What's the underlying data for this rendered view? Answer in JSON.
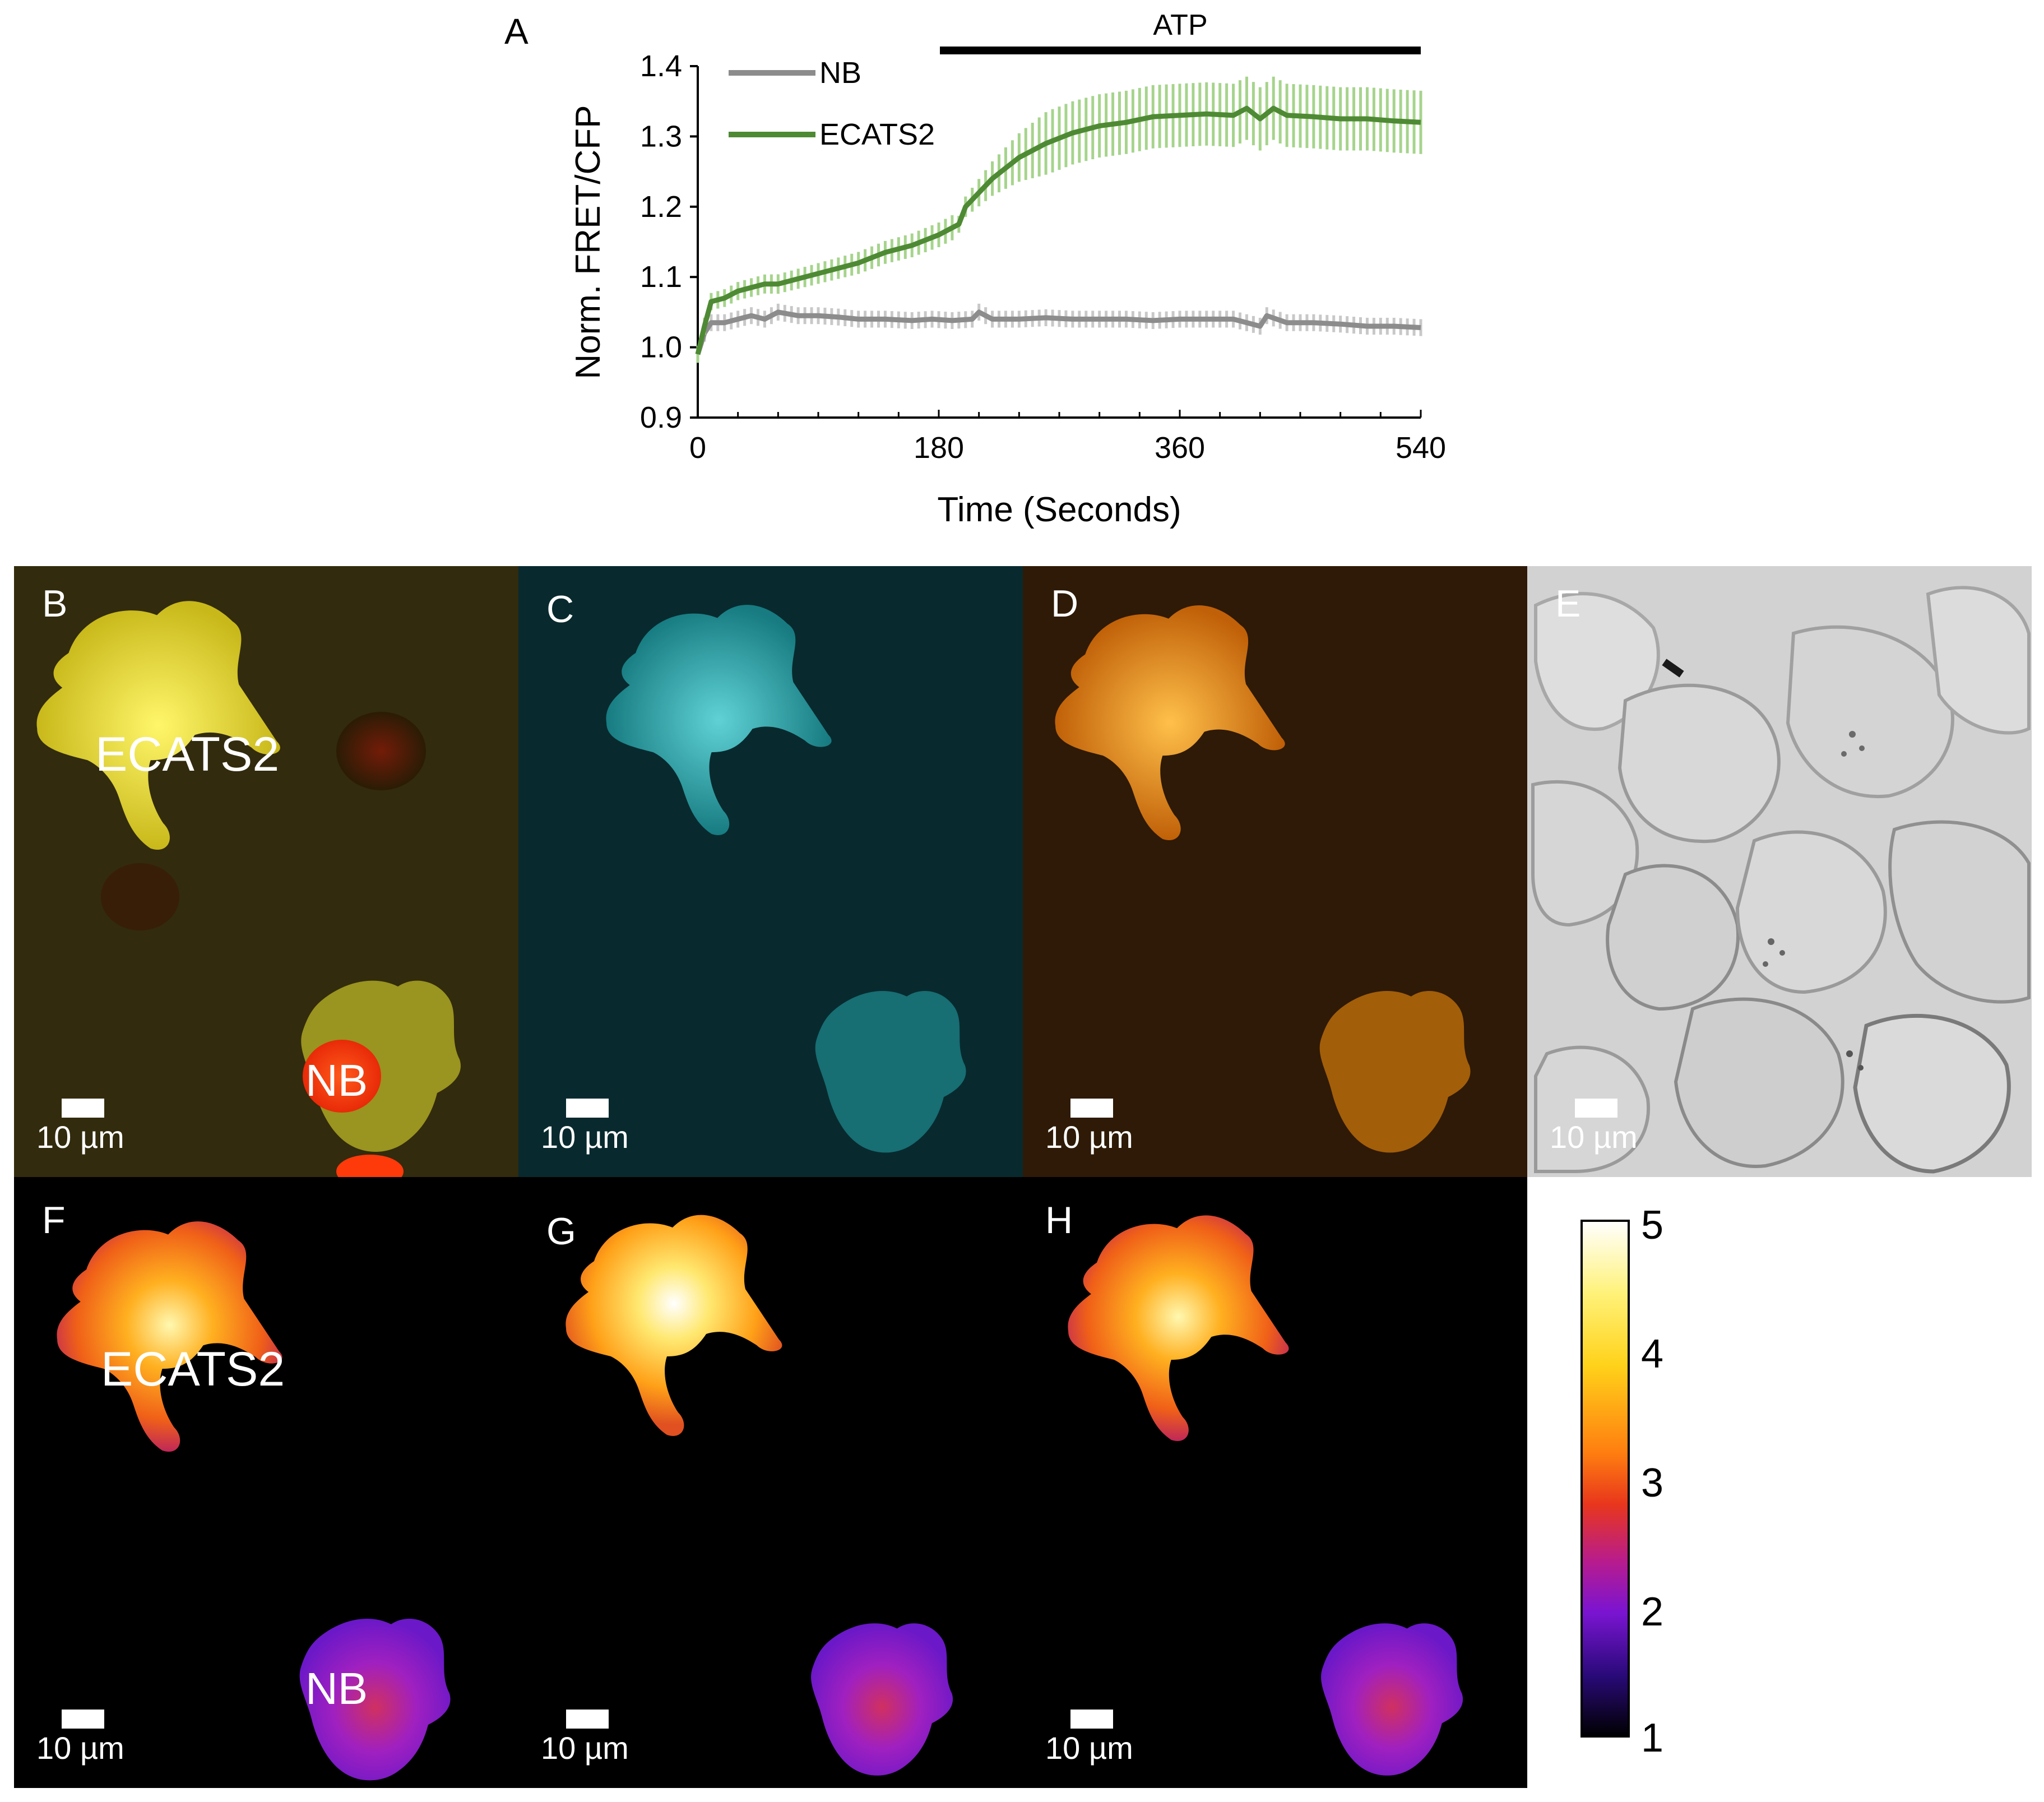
{
  "figure": {
    "panels": {
      "A": "A",
      "B": "B",
      "C": "C",
      "D": "D",
      "E": "E",
      "F": "F",
      "G": "G",
      "H": "H"
    },
    "cell_labels": {
      "ecats2": "ECATS2",
      "nb": "NB"
    },
    "scale_bar_label": "10 µm",
    "colorbar": {
      "ticks": [
        "5",
        "4",
        "3",
        "2",
        "1"
      ],
      "colors": [
        "#ffffff",
        "#ffee33",
        "#ff9a10",
        "#e83a1a",
        "#b01a80",
        "#6a10c8",
        "#2a0a70",
        "#000000"
      ]
    },
    "colors": {
      "nb_line": "#8c8c8c",
      "nb_err": "#c8c8c8",
      "ecats2_line": "#4e8a34",
      "ecats2_err": "#a6d48c",
      "yellow_cell": "#e8e23a",
      "cyan_cell": "#2cc2c8",
      "orange_cell": "#f08a10",
      "nb_nucleus": "#ff3a0a"
    }
  },
  "chart_data": {
    "type": "line",
    "title": "",
    "xlabel": "Time (Seconds)",
    "ylabel": "Norm. FRET/CFP",
    "xlim": [
      0,
      540
    ],
    "ylim": [
      0.9,
      1.4
    ],
    "xticks": [
      "0",
      "180",
      "360",
      "540"
    ],
    "yticks": [
      "0.9",
      "1.0",
      "1.1",
      "1.2",
      "1.3",
      "1.4"
    ],
    "annotation": {
      "label": "ATP",
      "x_start": 180,
      "x_end": 540
    },
    "legend": [
      "NB",
      "ECATS2"
    ],
    "series": [
      {
        "name": "NB",
        "x": [
          0,
          5,
          10,
          20,
          30,
          40,
          50,
          60,
          75,
          90,
          105,
          120,
          140,
          160,
          175,
          190,
          205,
          210,
          220,
          240,
          260,
          280,
          300,
          320,
          340,
          360,
          380,
          400,
          420,
          425,
          440,
          460,
          480,
          500,
          520,
          540
        ],
        "y": [
          0.99,
          1.02,
          1.035,
          1.035,
          1.04,
          1.045,
          1.04,
          1.05,
          1.045,
          1.045,
          1.043,
          1.04,
          1.04,
          1.038,
          1.04,
          1.038,
          1.04,
          1.05,
          1.04,
          1.04,
          1.042,
          1.04,
          1.04,
          1.04,
          1.038,
          1.04,
          1.04,
          1.04,
          1.03,
          1.045,
          1.035,
          1.035,
          1.033,
          1.03,
          1.03,
          1.028
        ],
        "err": 0.012
      },
      {
        "name": "ECATS2",
        "x": [
          0,
          5,
          10,
          20,
          30,
          40,
          50,
          60,
          80,
          100,
          120,
          140,
          160,
          180,
          195,
          200,
          210,
          220,
          240,
          260,
          280,
          300,
          320,
          340,
          360,
          380,
          400,
          410,
          420,
          430,
          440,
          460,
          480,
          500,
          520,
          540
        ],
        "y": [
          0.99,
          1.03,
          1.065,
          1.07,
          1.08,
          1.085,
          1.09,
          1.09,
          1.1,
          1.11,
          1.12,
          1.135,
          1.145,
          1.16,
          1.175,
          1.2,
          1.22,
          1.24,
          1.27,
          1.29,
          1.305,
          1.315,
          1.32,
          1.328,
          1.33,
          1.332,
          1.33,
          1.34,
          1.325,
          1.34,
          1.33,
          1.328,
          1.325,
          1.325,
          1.322,
          1.32
        ],
        "err_base": 0.012,
        "err_after": 0.045
      }
    ]
  }
}
